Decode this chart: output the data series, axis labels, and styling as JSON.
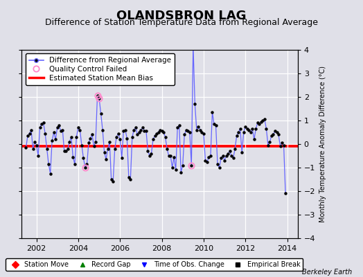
{
  "title": "OLANDSBRON LAG",
  "subtitle": "Difference of Station Temperature Data from Regional Average",
  "ylabel": "Monthly Temperature Anomaly Difference (°C)",
  "xlabel_ticks": [
    2002,
    2004,
    2006,
    2008,
    2010,
    2012,
    2014
  ],
  "xlim": [
    2001.3,
    2014.5
  ],
  "ylim": [
    -4,
    4
  ],
  "yticks": [
    -4,
    -3,
    -2,
    -1,
    0,
    1,
    2,
    3,
    4
  ],
  "bias_value": -0.05,
  "bias_color": "#ff0000",
  "line_color": "#6666ff",
  "marker_color": "#000000",
  "qc_color": "#ff88cc",
  "background_color": "#e0e0e8",
  "plot_bg_color": "#e0e0e8",
  "grid_color": "#ffffff",
  "watermark": "Berkeley Earth",
  "time_series": [
    [
      2001.5,
      -0.15
    ],
    [
      2001.583,
      0.35
    ],
    [
      2001.667,
      0.45
    ],
    [
      2001.75,
      0.6
    ],
    [
      2001.833,
      -0.2
    ],
    [
      2001.917,
      0.1
    ],
    [
      2002.0,
      -0.05
    ],
    [
      2002.083,
      -0.5
    ],
    [
      2002.167,
      0.7
    ],
    [
      2002.25,
      0.85
    ],
    [
      2002.333,
      0.9
    ],
    [
      2002.417,
      0.45
    ],
    [
      2002.5,
      -0.2
    ],
    [
      2002.583,
      -0.85
    ],
    [
      2002.667,
      -1.25
    ],
    [
      2002.75,
      0.15
    ],
    [
      2002.833,
      0.5
    ],
    [
      2002.917,
      0.2
    ],
    [
      2003.0,
      0.7
    ],
    [
      2003.083,
      0.8
    ],
    [
      2003.167,
      0.55
    ],
    [
      2003.25,
      0.6
    ],
    [
      2003.333,
      -0.3
    ],
    [
      2003.417,
      -0.3
    ],
    [
      2003.5,
      -0.2
    ],
    [
      2003.583,
      0.1
    ],
    [
      2003.667,
      0.3
    ],
    [
      2003.75,
      -0.55
    ],
    [
      2003.833,
      -0.85
    ],
    [
      2003.917,
      0.3
    ],
    [
      2004.0,
      0.7
    ],
    [
      2004.083,
      0.6
    ],
    [
      2004.167,
      -0.05
    ],
    [
      2004.25,
      -0.6
    ],
    [
      2004.333,
      -1.0
    ],
    [
      2004.417,
      -0.85
    ],
    [
      2004.5,
      0.05
    ],
    [
      2004.583,
      0.25
    ],
    [
      2004.667,
      0.4
    ],
    [
      2004.75,
      -0.1
    ],
    [
      2004.833,
      0.1
    ],
    [
      2004.917,
      2.05
    ],
    [
      2005.0,
      1.95
    ],
    [
      2005.083,
      1.3
    ],
    [
      2005.167,
      0.6
    ],
    [
      2005.25,
      -0.35
    ],
    [
      2005.333,
      -0.65
    ],
    [
      2005.417,
      -0.2
    ],
    [
      2005.5,
      0.1
    ],
    [
      2005.583,
      -1.5
    ],
    [
      2005.667,
      -1.6
    ],
    [
      2005.75,
      -0.2
    ],
    [
      2005.833,
      0.3
    ],
    [
      2005.917,
      0.45
    ],
    [
      2006.0,
      0.2
    ],
    [
      2006.083,
      -0.6
    ],
    [
      2006.167,
      0.55
    ],
    [
      2006.25,
      0.6
    ],
    [
      2006.333,
      0.25
    ],
    [
      2006.417,
      -1.4
    ],
    [
      2006.5,
      -1.5
    ],
    [
      2006.583,
      0.3
    ],
    [
      2006.667,
      0.6
    ],
    [
      2006.75,
      0.7
    ],
    [
      2006.833,
      0.4
    ],
    [
      2006.917,
      0.5
    ],
    [
      2007.0,
      0.6
    ],
    [
      2007.083,
      0.7
    ],
    [
      2007.167,
      0.55
    ],
    [
      2007.25,
      0.55
    ],
    [
      2007.333,
      -0.3
    ],
    [
      2007.417,
      -0.5
    ],
    [
      2007.5,
      -0.4
    ],
    [
      2007.583,
      0.2
    ],
    [
      2007.667,
      0.35
    ],
    [
      2007.75,
      0.45
    ],
    [
      2007.833,
      0.5
    ],
    [
      2007.917,
      0.6
    ],
    [
      2008.0,
      0.55
    ],
    [
      2008.083,
      0.5
    ],
    [
      2008.167,
      0.3
    ],
    [
      2008.25,
      -0.2
    ],
    [
      2008.333,
      -0.5
    ],
    [
      2008.417,
      -0.5
    ],
    [
      2008.5,
      -1.0
    ],
    [
      2008.583,
      -0.55
    ],
    [
      2008.667,
      -1.1
    ],
    [
      2008.75,
      0.7
    ],
    [
      2008.833,
      0.8
    ],
    [
      2008.917,
      -1.2
    ],
    [
      2009.0,
      -0.9
    ],
    [
      2009.083,
      0.4
    ],
    [
      2009.167,
      0.6
    ],
    [
      2009.25,
      0.55
    ],
    [
      2009.333,
      0.5
    ],
    [
      2009.417,
      -0.9
    ],
    [
      2009.5,
      4.2
    ],
    [
      2009.583,
      1.7
    ],
    [
      2009.667,
      0.6
    ],
    [
      2009.75,
      0.75
    ],
    [
      2009.833,
      0.6
    ],
    [
      2009.917,
      0.5
    ],
    [
      2010.0,
      0.45
    ],
    [
      2010.083,
      -0.7
    ],
    [
      2010.167,
      -0.75
    ],
    [
      2010.25,
      -0.55
    ],
    [
      2010.333,
      -0.5
    ],
    [
      2010.417,
      1.35
    ],
    [
      2010.5,
      0.85
    ],
    [
      2010.583,
      0.8
    ],
    [
      2010.667,
      -0.85
    ],
    [
      2010.75,
      -1.0
    ],
    [
      2010.833,
      -0.6
    ],
    [
      2010.917,
      -0.5
    ],
    [
      2011.0,
      -0.7
    ],
    [
      2011.083,
      -0.5
    ],
    [
      2011.167,
      -0.4
    ],
    [
      2011.25,
      -0.3
    ],
    [
      2011.333,
      -0.5
    ],
    [
      2011.417,
      -0.6
    ],
    [
      2011.5,
      -0.2
    ],
    [
      2011.583,
      0.35
    ],
    [
      2011.667,
      0.5
    ],
    [
      2011.75,
      0.65
    ],
    [
      2011.833,
      -0.35
    ],
    [
      2011.917,
      0.5
    ],
    [
      2012.0,
      0.75
    ],
    [
      2012.083,
      0.65
    ],
    [
      2012.167,
      0.6
    ],
    [
      2012.25,
      0.5
    ],
    [
      2012.333,
      0.65
    ],
    [
      2012.417,
      0.2
    ],
    [
      2012.5,
      0.65
    ],
    [
      2012.583,
      0.9
    ],
    [
      2012.667,
      0.85
    ],
    [
      2012.75,
      0.95
    ],
    [
      2012.833,
      1.0
    ],
    [
      2012.917,
      1.05
    ],
    [
      2013.0,
      0.65
    ],
    [
      2013.083,
      -0.05
    ],
    [
      2013.167,
      0.1
    ],
    [
      2013.25,
      0.35
    ],
    [
      2013.333,
      0.4
    ],
    [
      2013.417,
      0.55
    ],
    [
      2013.5,
      0.5
    ],
    [
      2013.583,
      0.4
    ],
    [
      2013.667,
      -0.1
    ],
    [
      2013.75,
      0.05
    ],
    [
      2013.833,
      -0.05
    ],
    [
      2013.917,
      -2.1
    ]
  ],
  "qc_failed_times": [
    2004.917,
    2005.0,
    2004.333,
    2009.417
  ],
  "title_fontsize": 13,
  "subtitle_fontsize": 9,
  "tick_fontsize": 8,
  "legend_fontsize": 7.5
}
